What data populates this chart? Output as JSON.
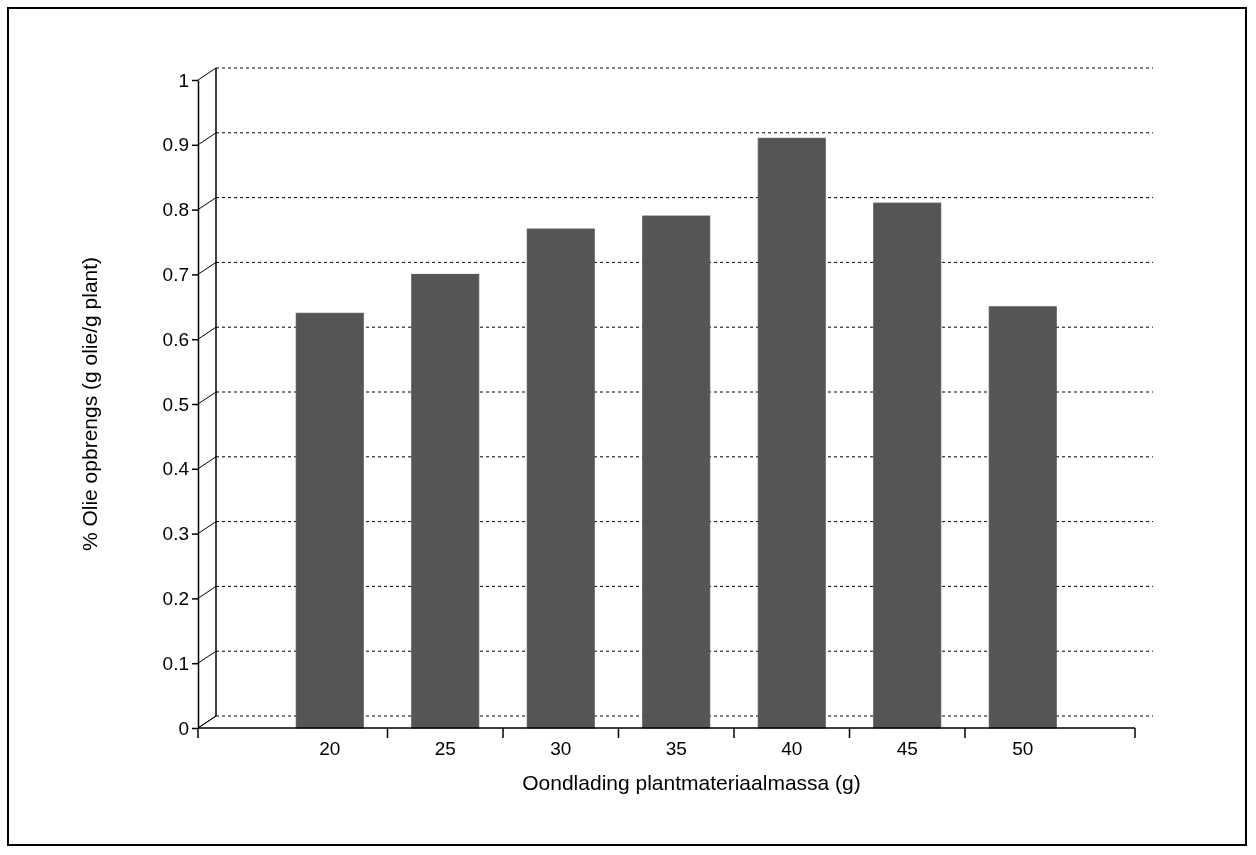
{
  "chart_data": {
    "type": "bar",
    "xlabel": "Oondlading plantmateriaalmassa (g)",
    "ylabel": "% Olie opbrengs (g olie/g plant)",
    "categories": [
      "20",
      "25",
      "30",
      "35",
      "40",
      "45",
      "50"
    ],
    "values": [
      0.64,
      0.7,
      0.77,
      0.79,
      0.91,
      0.81,
      0.65
    ],
    "color": "#555555",
    "ylim": [
      0,
      1
    ],
    "yticks": [
      0,
      0.1,
      0.2,
      0.3,
      0.4,
      0.5,
      0.6,
      0.7,
      0.8,
      0.9,
      1
    ],
    "grid": "y"
  }
}
